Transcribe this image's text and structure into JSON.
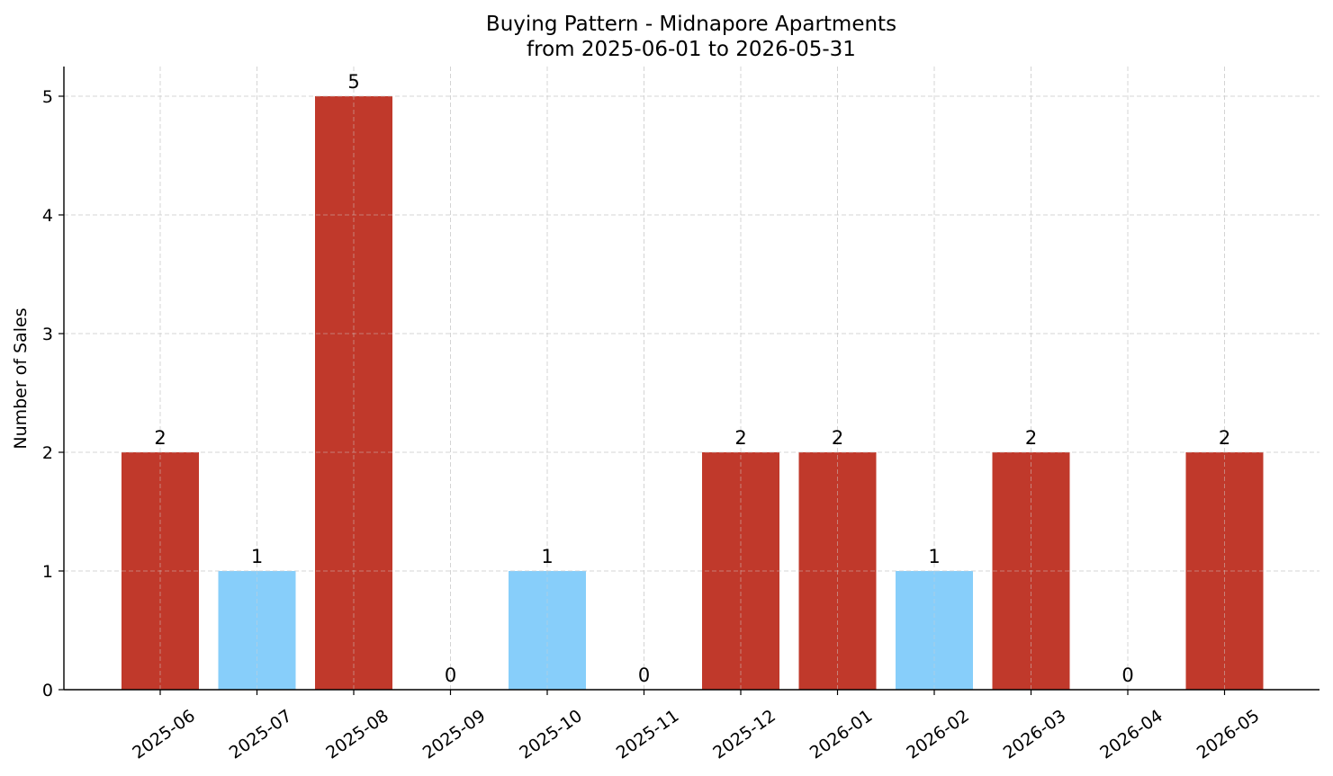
{
  "chart_data": {
    "type": "bar",
    "title_lines": [
      "Buying Pattern - Midnapore Apartments",
      "from 2025-06-01 to 2026-05-31"
    ],
    "xlabel": "",
    "ylabel": "Number of Sales",
    "categories": [
      "2025-06",
      "2025-07",
      "2025-08",
      "2025-09",
      "2025-10",
      "2025-11",
      "2025-12",
      "2026-01",
      "2026-02",
      "2026-03",
      "2026-04",
      "2026-05"
    ],
    "values": [
      2,
      1,
      5,
      0,
      1,
      0,
      2,
      2,
      1,
      2,
      0,
      2
    ],
    "bar_colors": [
      "#c0392b",
      "#87cefa",
      "#c0392b",
      "#c0392b",
      "#87cefa",
      "#c0392b",
      "#c0392b",
      "#c0392b",
      "#87cefa",
      "#c0392b",
      "#c0392b",
      "#c0392b"
    ],
    "ylim": [
      0,
      5.25
    ],
    "yticks": [
      0,
      1,
      2,
      3,
      4,
      5
    ],
    "grid": true,
    "data_labels": true
  }
}
